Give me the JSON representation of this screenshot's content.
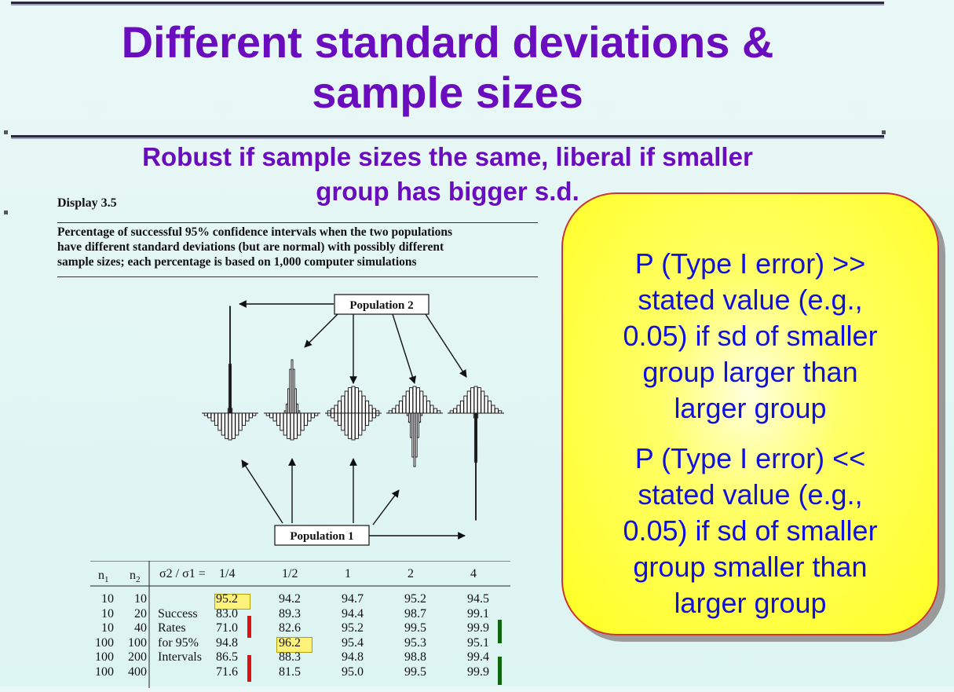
{
  "slide": {
    "title_line1": "Different standard deviations &",
    "title_line2": "sample sizes",
    "subtitle_line1": "Robust if sample sizes the same, liberal if smaller",
    "subtitle_line2": "group has bigger s.d."
  },
  "display": {
    "label": "Display 3.5",
    "caption_line1": "Percentage of successful 95% confidence intervals when the two populations",
    "caption_line2": "have different standard deviations (but are normal) with possibly different",
    "caption_line3": "sample sizes; each percentage is based on 1,000 computer simulations",
    "population1": "Population 1",
    "population2": "Population 2"
  },
  "table": {
    "header": {
      "n1": "n",
      "n1_sub": "1",
      "n2": "n",
      "n2_sub": "2",
      "ratio": "σ2 / σ1 ="
    },
    "columns": [
      "1/4",
      "1/2",
      "1",
      "2",
      "4"
    ],
    "row_labels": [
      "",
      "Success",
      "Rates",
      "for 95%",
      "Intervals",
      ""
    ],
    "rows": [
      {
        "n1": "10",
        "n2": "10",
        "values": [
          "95.2",
          "94.2",
          "94.7",
          "95.2",
          "94.5"
        ]
      },
      {
        "n1": "10",
        "n2": "20",
        "values": [
          "83.0",
          "89.3",
          "94.4",
          "98.7",
          "99.1"
        ]
      },
      {
        "n1": "10",
        "n2": "40",
        "values": [
          "71.0",
          "82.6",
          "95.2",
          "99.5",
          "99.9"
        ]
      },
      {
        "n1": "100",
        "n2": "100",
        "values": [
          "94.8",
          "96.2",
          "95.4",
          "95.3",
          "95.1"
        ]
      },
      {
        "n1": "100",
        "n2": "200",
        "values": [
          "86.5",
          "88.3",
          "94.8",
          "98.8",
          "99.4"
        ]
      },
      {
        "n1": "100",
        "n2": "400",
        "values": [
          "71.6",
          "81.5",
          "95.0",
          "99.5",
          "99.9"
        ]
      }
    ]
  },
  "callout": {
    "p1_line1": "P (Type I error) >>",
    "p1_line2": "stated value (e.g.,",
    "p1_line3": "0.05) if sd of smaller",
    "p1_line4": "group larger than",
    "p1_line5": "larger group",
    "p2_line1": "P (Type I error) <<",
    "p2_line2": "stated value (e.g.,",
    "p2_line3": "0.05) if sd of smaller",
    "p2_line4": "group smaller than",
    "p2_line5": "larger group"
  },
  "colors": {
    "title": "#6a0dbf",
    "callout_text": "#1010e0",
    "callout_fill": "#ffff33",
    "highlight": "#fff27a",
    "red_mark": "#dd1111",
    "green_mark": "#116611"
  }
}
